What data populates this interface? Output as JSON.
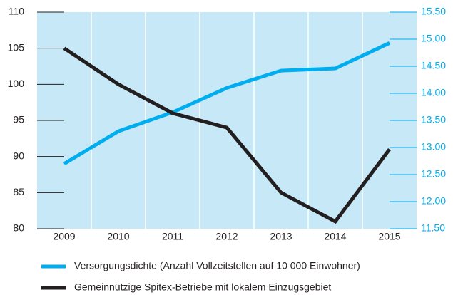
{
  "chart_data": {
    "type": "line",
    "categories": [
      "2009",
      "2010",
      "2011",
      "2012",
      "2013",
      "2014",
      "2015"
    ],
    "series": [
      {
        "name": "Versorgungsdichte (Anzahl Vollzeitstellen auf 10 000 Einwohner)",
        "color": "#00aeef",
        "axis": "y2",
        "values": [
          12.7,
          13.3,
          13.65,
          14.1,
          14.42,
          14.46,
          14.93
        ]
      },
      {
        "name": "Gemeinnützige Spitex-Betriebe mit lokalem Einzugsgebiet",
        "color": "#231f20",
        "values": [
          105,
          100,
          96,
          94,
          85,
          81,
          91
        ]
      }
    ],
    "ylim": [
      80,
      110
    ],
    "yticks": [
      80,
      85,
      90,
      95,
      100,
      105,
      110
    ],
    "y2lim": [
      11.5,
      15.5
    ],
    "y2ticks": [
      {
        "value": 11.5,
        "label": "11.50"
      },
      {
        "value": 12,
        "label": "12.00"
      },
      {
        "value": 12.5,
        "label": "12.50"
      },
      {
        "value": 13,
        "label": "13.00"
      },
      {
        "value": 13.5,
        "label": "13.50"
      },
      {
        "value": 14,
        "label": "14.00"
      },
      {
        "value": 14.5,
        "label": "14.50"
      },
      {
        "value": 15,
        "label": "15.00"
      },
      {
        "value": 15.5,
        "label": "15.50"
      }
    ],
    "background": "#c6e8f7",
    "legend": "bottom"
  }
}
